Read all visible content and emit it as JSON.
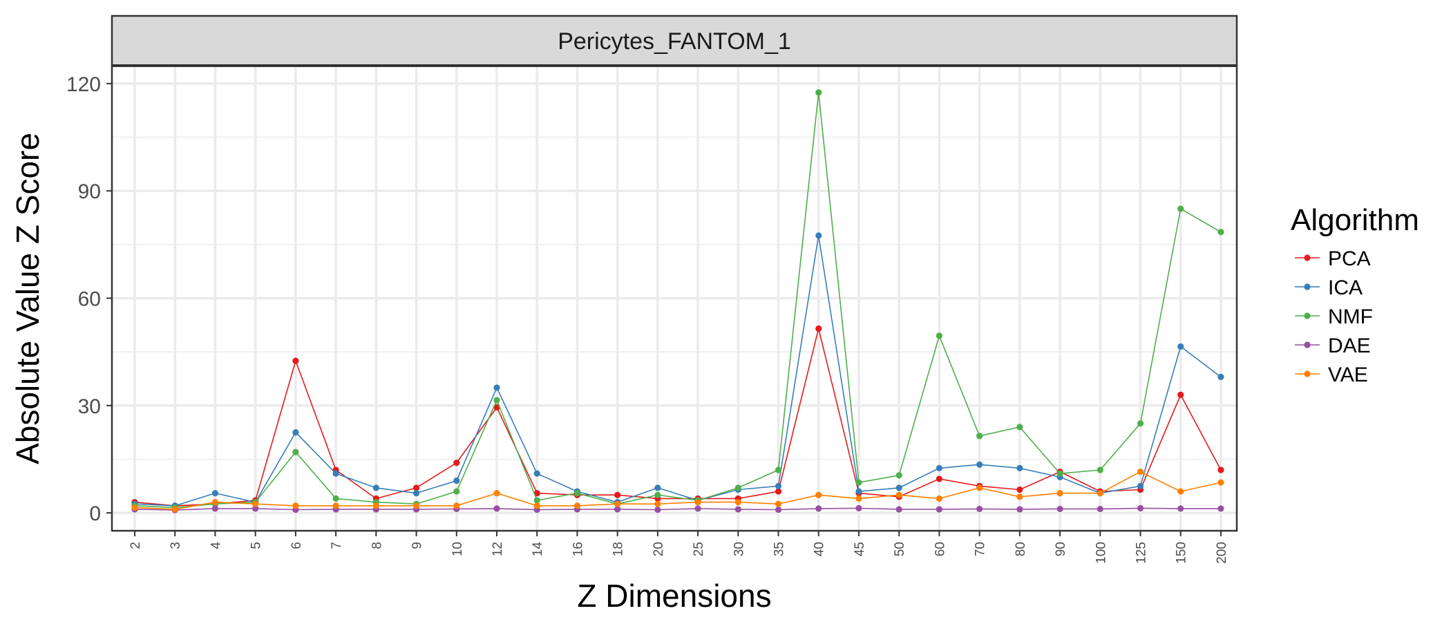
{
  "chart_data": {
    "type": "line",
    "panel_title": "Pericytes_FANTOM_1",
    "xlabel": "Z Dimensions",
    "ylabel": "Absolute Value Z Score",
    "categories": [
      "2",
      "3",
      "4",
      "5",
      "6",
      "7",
      "8",
      "9",
      "10",
      "12",
      "14",
      "16",
      "18",
      "20",
      "25",
      "30",
      "35",
      "40",
      "45",
      "50",
      "60",
      "70",
      "80",
      "90",
      "100",
      "125",
      "150",
      "200"
    ],
    "yticks": [
      0,
      30,
      60,
      90,
      120
    ],
    "ylim": [
      -5,
      125
    ],
    "grid": true,
    "legend_title": "Algorithm",
    "legend_position": "right",
    "series": [
      {
        "name": "PCA",
        "color": "#e41a1c",
        "values": [
          3.0,
          2.0,
          2.5,
          3.5,
          42.5,
          12.0,
          4.0,
          7.0,
          14.0,
          29.5,
          5.5,
          5.0,
          5.0,
          4.0,
          4.0,
          4.0,
          6.0,
          51.5,
          5.5,
          4.5,
          9.5,
          7.5,
          6.5,
          11.5,
          6.0,
          6.5,
          33.0,
          12.0
        ]
      },
      {
        "name": "ICA",
        "color": "#377eb8",
        "values": [
          2.5,
          2.0,
          5.5,
          3.0,
          22.5,
          11.0,
          7.0,
          5.5,
          9.0,
          35.0,
          11.0,
          6.0,
          3.0,
          7.0,
          3.5,
          6.5,
          7.5,
          77.5,
          6.0,
          7.0,
          12.5,
          13.5,
          12.5,
          10.0,
          5.5,
          7.5,
          46.5,
          38.0
        ]
      },
      {
        "name": "NMF",
        "color": "#4daf4a",
        "values": [
          2.0,
          1.5,
          2.5,
          3.0,
          17.0,
          4.0,
          3.0,
          2.5,
          6.0,
          31.5,
          3.5,
          5.5,
          2.5,
          5.0,
          3.5,
          7.0,
          12.0,
          117.5,
          8.5,
          10.5,
          49.5,
          21.5,
          24.0,
          11.0,
          12.0,
          25.0,
          85.0,
          78.5
        ]
      },
      {
        "name": "DAE",
        "color": "#984ea3",
        "values": [
          1.0,
          0.8,
          1.2,
          1.2,
          0.9,
          1.0,
          1.0,
          1.0,
          1.1,
          1.2,
          0.9,
          1.0,
          1.0,
          0.9,
          1.2,
          1.0,
          0.9,
          1.2,
          1.3,
          1.0,
          1.0,
          1.1,
          1.0,
          1.1,
          1.1,
          1.3,
          1.2,
          1.2
        ]
      },
      {
        "name": "VAE",
        "color": "#ff7f00",
        "values": [
          1.5,
          1.0,
          3.0,
          2.5,
          2.0,
          2.0,
          2.0,
          2.0,
          2.0,
          5.5,
          2.0,
          2.0,
          2.5,
          2.5,
          3.0,
          3.0,
          2.5,
          5.0,
          4.0,
          5.0,
          4.0,
          7.0,
          4.5,
          5.5,
          5.5,
          11.5,
          6.0,
          8.5
        ]
      }
    ]
  }
}
